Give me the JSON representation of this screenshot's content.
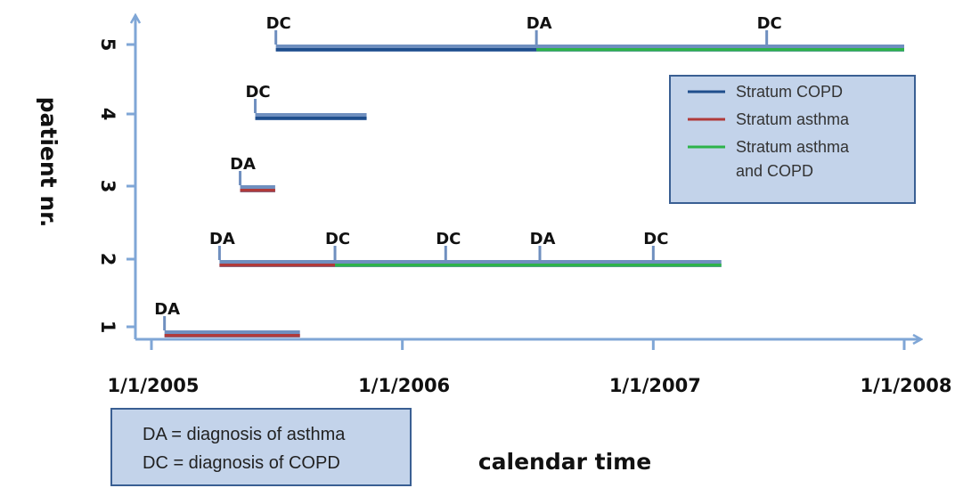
{
  "chart_data": {
    "type": "timeline",
    "xlabel": "calendar time",
    "ylabel": "patient nr.",
    "xlim": [
      "2005-01-01",
      "2008-01-01"
    ],
    "x_ticks": [
      "1/1/2005",
      "1/1/2006",
      "1/1/2007",
      "1/1/2008"
    ],
    "y_ticks": [
      "1",
      "2",
      "3",
      "4",
      "5"
    ],
    "colors": {
      "axis": "#7fa6d6",
      "copd": "#1f4e8c",
      "asthma": "#b03a3a",
      "asthma_copd": "#2db34a",
      "outline": "#6f8fbf",
      "box_fill": "#c3d3ea",
      "box_border": "#3a5f93"
    },
    "series": [
      {
        "name": "Stratum COPD",
        "color_key": "copd"
      },
      {
        "name": "Stratum asthma",
        "color_key": "asthma"
      },
      {
        "name": "Stratum asthma and COPD",
        "color_key": "asthma_copd"
      }
    ],
    "legend": {
      "position": "right",
      "entries": [
        {
          "lines": [
            "Stratum COPD"
          ],
          "color_key": "copd"
        },
        {
          "lines": [
            "Stratum asthma"
          ],
          "color_key": "asthma"
        },
        {
          "lines": [
            "Stratum asthma",
            "and COPD"
          ],
          "color_key": "asthma_copd"
        }
      ]
    },
    "patients": [
      {
        "patient": 1,
        "segments": [
          {
            "start": "2005-01-20",
            "end": "2005-08-05",
            "stratum": "asthma"
          }
        ],
        "events": [
          {
            "date": "2005-01-20",
            "label": "DA"
          }
        ]
      },
      {
        "patient": 2,
        "segments": [
          {
            "start": "2005-04-10",
            "end": "2005-09-25",
            "stratum": "asthma"
          },
          {
            "start": "2005-09-25",
            "end": "2007-04-10",
            "stratum": "asthma_copd"
          }
        ],
        "events": [
          {
            "date": "2005-04-10",
            "label": "DA"
          },
          {
            "date": "2005-09-25",
            "label": "DC"
          },
          {
            "date": "2006-03-05",
            "label": "DC"
          },
          {
            "date": "2006-07-20",
            "label": "DA"
          },
          {
            "date": "2007-01-01",
            "label": "DC"
          }
        ]
      },
      {
        "patient": 3,
        "segments": [
          {
            "start": "2005-05-10",
            "end": "2005-06-30",
            "stratum": "asthma"
          }
        ],
        "events": [
          {
            "date": "2005-05-10",
            "label": "DA"
          }
        ]
      },
      {
        "patient": 4,
        "segments": [
          {
            "start": "2005-06-01",
            "end": "2005-11-10",
            "stratum": "copd"
          }
        ],
        "events": [
          {
            "date": "2005-06-01",
            "label": "DC"
          }
        ]
      },
      {
        "patient": 5,
        "segments": [
          {
            "start": "2005-07-01",
            "end": "2006-07-15",
            "stratum": "copd"
          },
          {
            "start": "2006-07-15",
            "end": "2008-01-01",
            "stratum": "asthma_copd"
          }
        ],
        "events": [
          {
            "date": "2005-07-01",
            "label": "DC"
          },
          {
            "date": "2006-07-15",
            "label": "DA"
          },
          {
            "date": "2007-06-15",
            "label": "DC"
          }
        ]
      }
    ],
    "note": [
      "DA = diagnosis of asthma",
      "DC = diagnosis of COPD"
    ]
  }
}
